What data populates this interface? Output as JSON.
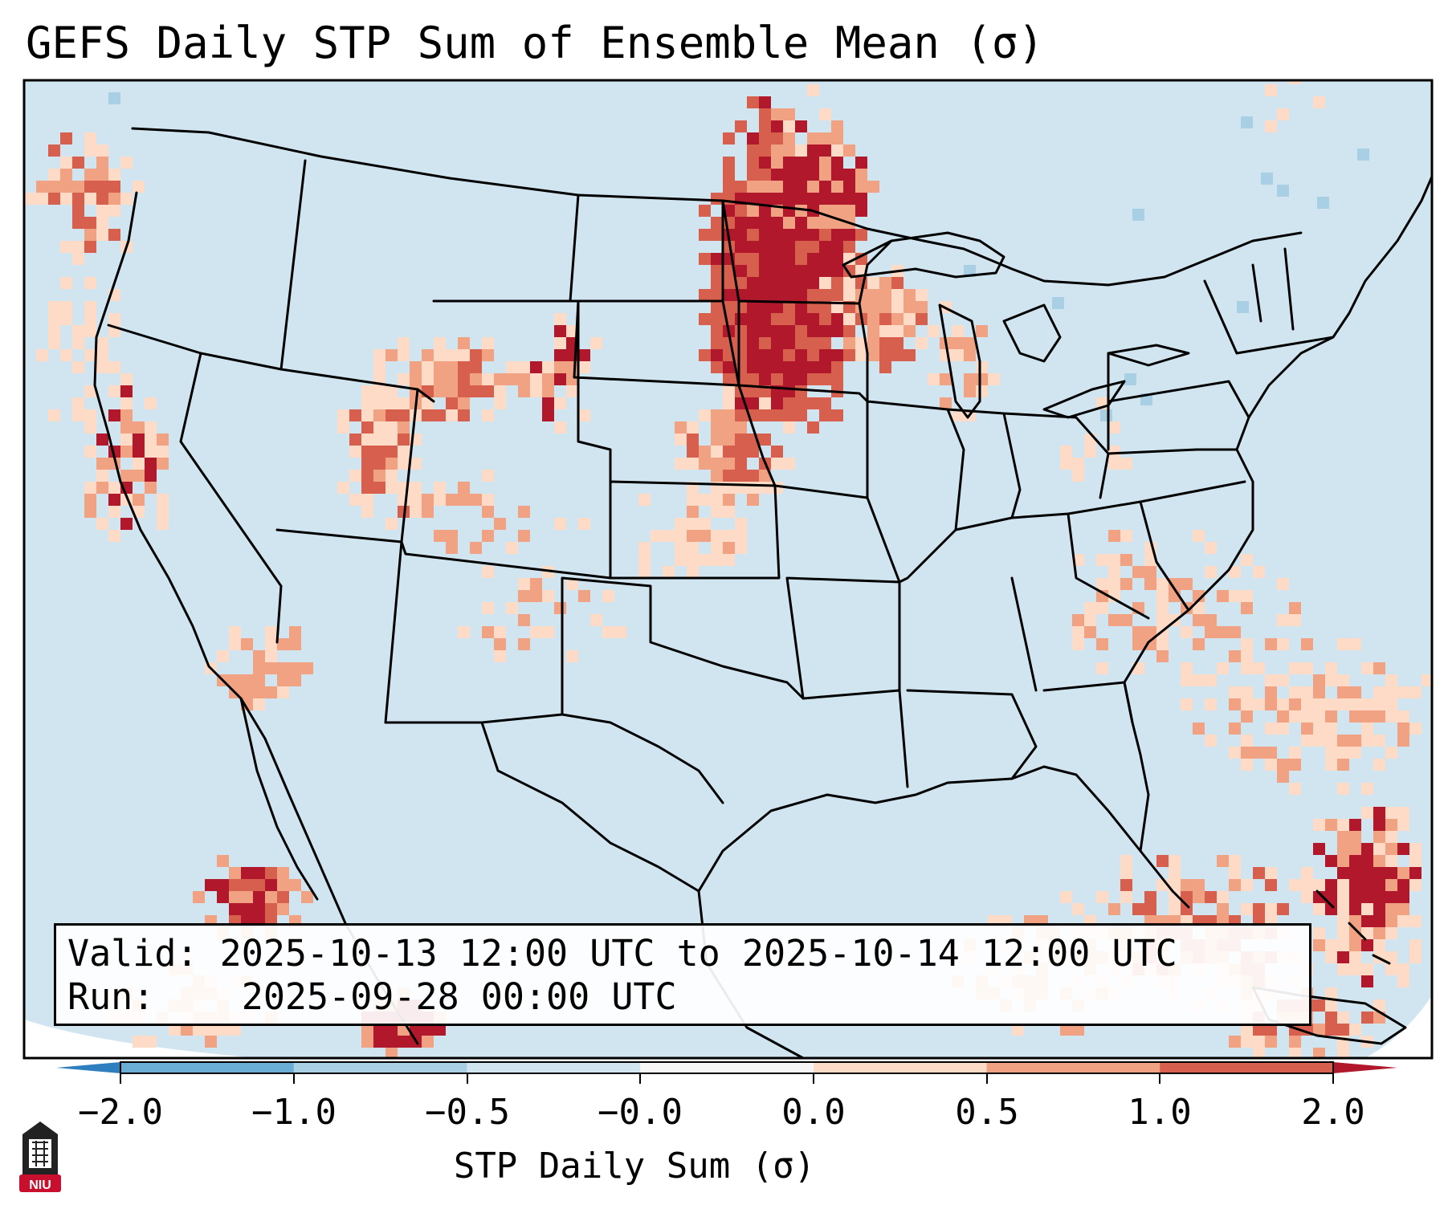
{
  "title": "GEFS Daily STP Sum of Ensemble Mean (σ)",
  "info": {
    "valid_label": "Valid:",
    "valid_value": "2025-10-13 12:00 UTC to 2025-10-14 12:00 UTC",
    "run_label": "Run:",
    "run_value": "2025-09-28 00:00 UTC"
  },
  "colorbar": {
    "label": "STP Daily Sum (σ)",
    "ticks": [
      "−2.0",
      "−1.0",
      "−0.5",
      "−0.0",
      "0.0",
      "0.5",
      "1.0",
      "2.0"
    ],
    "colors": [
      "#2f7fbf",
      "#6aaed5",
      "#a9cfe4",
      "#d1e5f0",
      "#f6f6f6",
      "#fddbc7",
      "#f0a283",
      "#d6604d",
      "#b2182b"
    ]
  },
  "map": {
    "background_color": "#d1e5f0",
    "border_color": "#000000"
  },
  "logo": {
    "text": "NIU",
    "color": "#c8102e"
  }
}
